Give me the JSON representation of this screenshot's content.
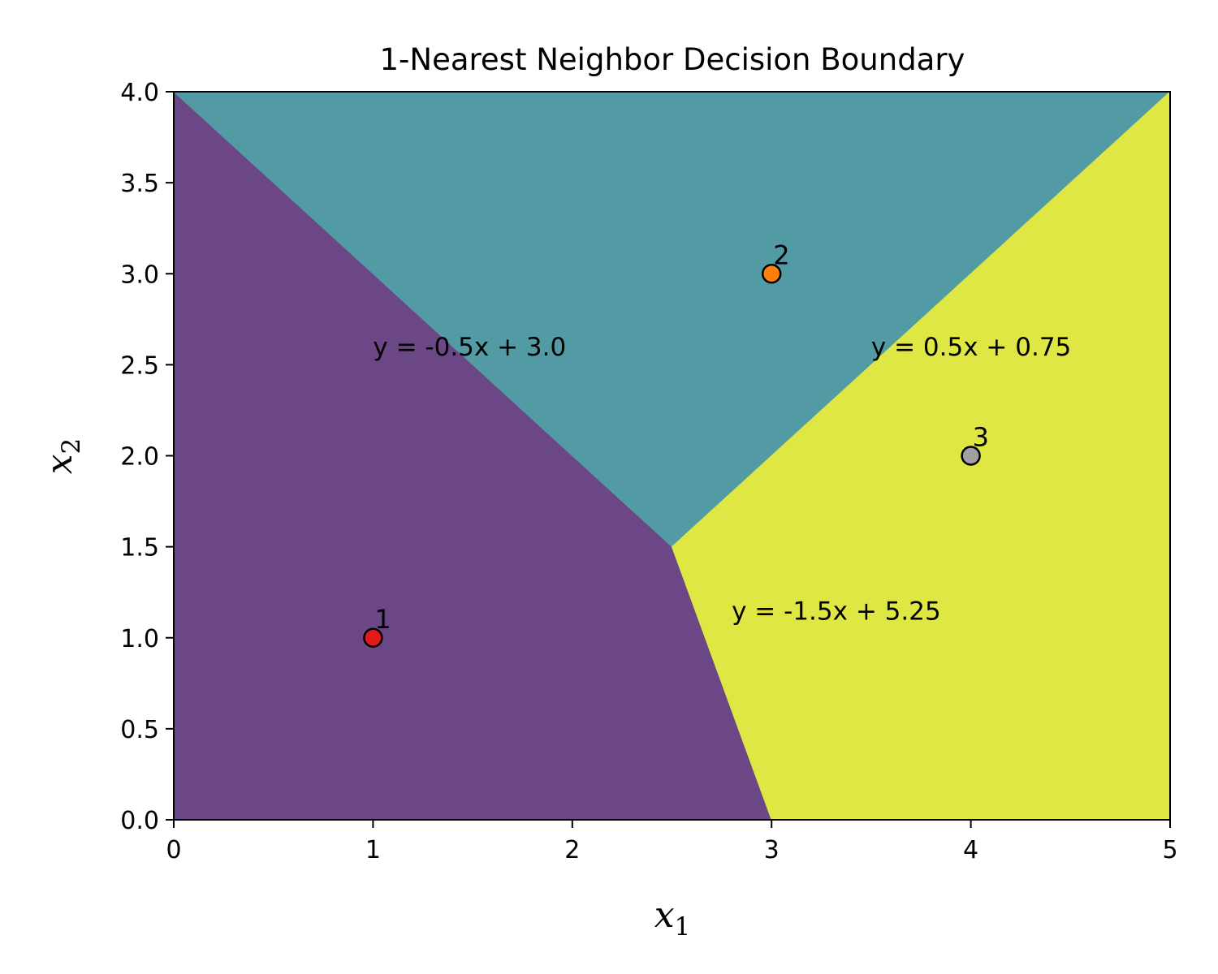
{
  "chart_data": {
    "type": "scatter",
    "title": "1-Nearest Neighbor Decision Boundary",
    "xlabel": {
      "base": "x",
      "sub": "1"
    },
    "ylabel": {
      "base": "x",
      "sub": "2"
    },
    "xlim": [
      0,
      5
    ],
    "ylim": [
      0,
      4
    ],
    "x_ticks": [
      "0",
      "1",
      "2",
      "3",
      "4",
      "5"
    ],
    "y_ticks": [
      "0.0",
      "0.5",
      "1.0",
      "1.5",
      "2.0",
      "2.5",
      "3.0",
      "3.5",
      "4.0"
    ],
    "grid": false,
    "points": [
      {
        "label": "1",
        "x": 1,
        "y": 1,
        "color": "#e31a1c"
      },
      {
        "label": "2",
        "x": 3,
        "y": 3,
        "color": "#ff7f0e"
      },
      {
        "label": "3",
        "x": 4,
        "y": 2,
        "color": "#a0a0a0"
      }
    ],
    "regions": [
      {
        "nearest_point": "1",
        "color": "#6c4786"
      },
      {
        "nearest_point": "2",
        "color": "#529aa4"
      },
      {
        "nearest_point": "3",
        "color": "#dfe745"
      }
    ],
    "annotations": [
      {
        "text": "y = -0.5x + 3.0",
        "x": 1.0,
        "y": 2.55
      },
      {
        "text": "y = 0.5x + 0.75",
        "x": 3.5,
        "y": 2.55
      },
      {
        "text": "y = -1.5x + 5.25",
        "x": 2.8,
        "y": 1.1
      }
    ]
  }
}
